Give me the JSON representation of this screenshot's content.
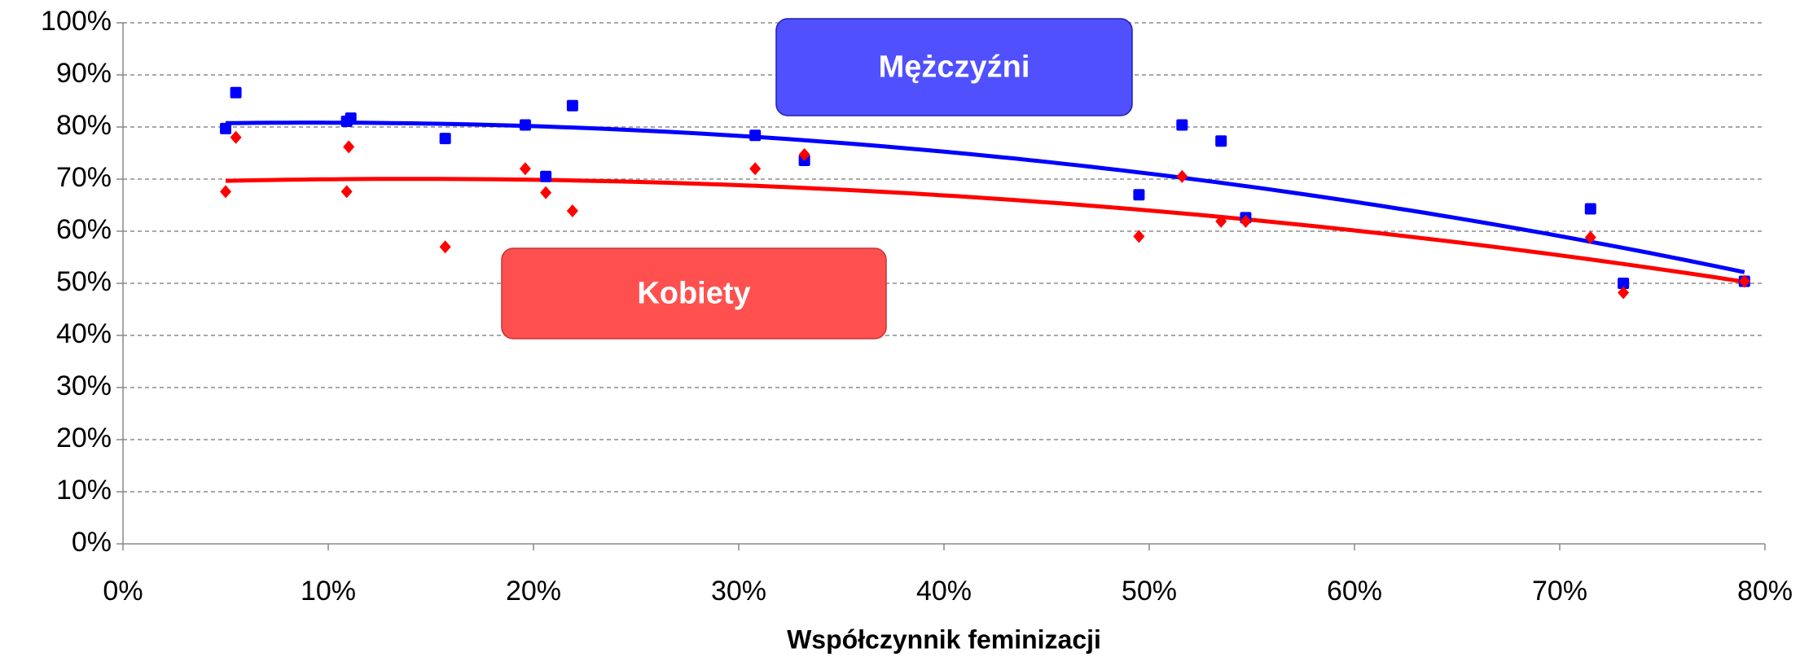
{
  "chart_data": {
    "type": "scatter",
    "x_label": "Współczynnik feminizacji",
    "xlim": [
      0,
      80
    ],
    "xticks": [
      {
        "value": 0,
        "label": "0%"
      },
      {
        "value": 10,
        "label": "10%"
      },
      {
        "value": 20,
        "label": "20%"
      },
      {
        "value": 30,
        "label": "30%"
      },
      {
        "value": 40,
        "label": "40%"
      },
      {
        "value": 50,
        "label": "50%"
      },
      {
        "value": 60,
        "label": "60%"
      },
      {
        "value": 70,
        "label": "70%"
      },
      {
        "value": 80,
        "label": "80%"
      }
    ],
    "ylim": [
      0,
      100
    ],
    "yticks": [
      {
        "value": 0,
        "label": "0%"
      },
      {
        "value": 10,
        "label": "10%"
      },
      {
        "value": 20,
        "label": "20%"
      },
      {
        "value": 30,
        "label": "30%"
      },
      {
        "value": 40,
        "label": "40%"
      },
      {
        "value": 50,
        "label": "50%"
      },
      {
        "value": 60,
        "label": "60%"
      },
      {
        "value": 70,
        "label": "70%"
      },
      {
        "value": 80,
        "label": "80%"
      },
      {
        "value": 90,
        "label": "90%"
      },
      {
        "value": 100,
        "label": "100%"
      }
    ],
    "grid": true,
    "trendline": "polynomial",
    "trendline_order": 2,
    "series": [
      {
        "name": "Mężczyźni",
        "color": "#0000ff",
        "marker": "square",
        "x": [
          5.0,
          5.5,
          10.9,
          11.1,
          15.7,
          19.6,
          20.6,
          21.9,
          30.8,
          33.2,
          49.5,
          51.6,
          53.5,
          54.7,
          71.5,
          73.1,
          79.0
        ],
        "values": [
          79.7,
          86.6,
          81.1,
          81.7,
          77.8,
          80.4,
          70.5,
          84.1,
          78.4,
          73.6,
          67.0,
          80.4,
          77.3,
          62.6,
          64.3,
          50.0,
          50.4
        ]
      },
      {
        "name": "Kobiety",
        "color": "#ff0000",
        "marker": "diamond",
        "x": [
          5.0,
          5.5,
          10.9,
          11.0,
          15.7,
          19.6,
          20.6,
          21.9,
          30.8,
          33.2,
          49.5,
          51.6,
          53.5,
          54.7,
          71.5,
          73.1,
          79.0
        ],
        "values": [
          67.6,
          78.0,
          67.6,
          76.2,
          57.0,
          72.0,
          67.4,
          63.9,
          72.0,
          74.7,
          59.0,
          70.5,
          61.9,
          61.9,
          58.8,
          48.2,
          50.4
        ]
      }
    ]
  }
}
